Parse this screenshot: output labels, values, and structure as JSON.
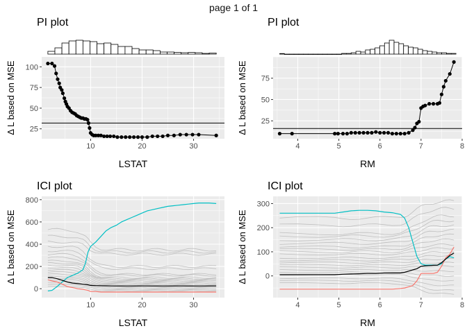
{
  "page_title": "page 1 of 1",
  "colors": {
    "panel_bg": "#ebebeb",
    "grid": "#ffffff",
    "ice_line": "#bebebe",
    "mean_line": "#000000",
    "q_low": "#f8766d",
    "q_high": "#00bfc4",
    "hist_fill": "#ffffff",
    "hist_stroke": "#000000"
  },
  "chart_data": [
    {
      "id": "pi-lstat",
      "type": "line",
      "title": "PI plot",
      "xlabel": "LSTAT",
      "ylabel": "Δ L based on MSE",
      "xlim": [
        0.5,
        36
      ],
      "ylim": [
        13,
        112
      ],
      "xticks": [
        10,
        20,
        30
      ],
      "yticks": [
        25,
        50,
        75,
        100
      ],
      "hline": 32,
      "grid": true,
      "histogram": [
        0.2,
        0.45,
        0.8,
        0.95,
        1.0,
        0.95,
        0.9,
        0.75,
        0.8,
        0.7,
        0.55,
        0.55,
        0.4,
        0.3,
        0.3,
        0.25,
        0.15,
        0.15,
        0.12,
        0.1,
        0.12,
        0.1,
        0.05,
        0.08
      ],
      "points": {
        "x": [
          1.7,
          2.5,
          3.0,
          3.3,
          3.6,
          3.9,
          4.1,
          4.4,
          4.6,
          4.9,
          5.1,
          5.3,
          5.5,
          5.8,
          6.1,
          6.4,
          6.7,
          7.0,
          7.3,
          7.6,
          7.9,
          8.2,
          8.5,
          8.8,
          9.1,
          9.4,
          9.6,
          9.8,
          10.0,
          10.3,
          10.6,
          11.0,
          11.5,
          12.0,
          12.6,
          13.2,
          13.8,
          14.5,
          15.2,
          16.0,
          16.8,
          17.6,
          18.4,
          19.2,
          20.0,
          21.0,
          22.0,
          23.0,
          24.0,
          25.0,
          26.2,
          27.4,
          28.6,
          29.8,
          31.0,
          34.4
        ],
        "y": [
          104,
          104,
          101,
          92,
          85,
          80,
          75,
          72,
          68,
          62,
          58,
          55,
          52,
          50,
          47,
          45,
          44,
          43,
          41,
          40,
          39,
          38,
          38,
          37,
          37,
          36,
          32,
          26,
          20,
          18,
          17,
          17,
          17,
          17,
          16,
          16,
          16,
          16,
          15,
          15,
          15,
          15,
          15,
          15,
          15,
          15,
          16,
          16,
          16,
          17,
          17,
          18,
          18,
          18,
          18,
          17
        ]
      }
    },
    {
      "id": "pi-rm",
      "type": "line",
      "title": "PI plot",
      "xlabel": "RM",
      "ylabel": "Δ L based on MSE",
      "xlim": [
        3.4,
        8.0
      ],
      "ylim": [
        4,
        100
      ],
      "xticks": [
        4,
        5,
        6,
        7,
        8
      ],
      "yticks": [
        25,
        50,
        75
      ],
      "hline": 16,
      "grid": true,
      "histogram": [
        0.04,
        0.0,
        0.0,
        0.0,
        0.0,
        0.0,
        0.0,
        0.0,
        0.0,
        0.0,
        0.0,
        0.0,
        0.0,
        0.05,
        0.05,
        0.1,
        0.2,
        0.15,
        0.3,
        0.35,
        0.45,
        0.6,
        0.8,
        1.0,
        0.85,
        0.75,
        0.6,
        0.5,
        0.45,
        0.35,
        0.25,
        0.2,
        0.15,
        0.1,
        0.1,
        0.05,
        0.05
      ],
      "points": {
        "x": [
          3.56,
          3.86,
          4.9,
          4.98,
          5.1,
          5.2,
          5.3,
          5.4,
          5.5,
          5.6,
          5.7,
          5.8,
          5.9,
          6.0,
          6.1,
          6.2,
          6.3,
          6.4,
          6.5,
          6.6,
          6.7,
          6.8,
          6.85,
          6.9,
          6.95,
          7.0,
          7.05,
          7.1,
          7.2,
          7.3,
          7.4,
          7.45,
          7.5,
          7.55,
          7.6,
          7.7,
          7.8
        ],
        "y": [
          10,
          10,
          10,
          10,
          10,
          10,
          11,
          11,
          11,
          11,
          11,
          11,
          12,
          11,
          11,
          11,
          10,
          10,
          10,
          10,
          11,
          14,
          17,
          22,
          24,
          40,
          42,
          43,
          45,
          45,
          45,
          46,
          56,
          65,
          72,
          80,
          94
        ]
      }
    },
    {
      "id": "ici-lstat",
      "type": "line",
      "title": "ICI plot",
      "xlabel": "LSTAT",
      "ylabel": "Δ L based on MSE",
      "xlim": [
        0.5,
        36
      ],
      "ylim": [
        -80,
        830
      ],
      "xticks": [
        10,
        20,
        30
      ],
      "yticks": [
        0,
        200,
        400,
        600,
        800
      ],
      "grid": true,
      "x": [
        1.7,
        2.5,
        3.5,
        4.5,
        5.5,
        6.5,
        7.5,
        8.5,
        9.0,
        9.5,
        10.0,
        11.0,
        12.0,
        13.0,
        14.0,
        15.0,
        16.0,
        17.0,
        18.0,
        19.0,
        20.0,
        21.0,
        22.0,
        23.0,
        24.0,
        25.0,
        26.0,
        27.0,
        28.0,
        29.0,
        30.0,
        31.0,
        32.0,
        33.0,
        34.4
      ],
      "series": [
        {
          "role": "high",
          "values": [
            -20,
            -15,
            20,
            60,
            100,
            120,
            140,
            170,
            230,
            330,
            380,
            420,
            470,
            520,
            550,
            570,
            600,
            620,
            640,
            660,
            680,
            700,
            710,
            720,
            730,
            740,
            745,
            750,
            755,
            760,
            765,
            770,
            770,
            770,
            765
          ]
        },
        {
          "role": "low",
          "values": [
            80,
            70,
            60,
            40,
            20,
            10,
            0,
            -5,
            -10,
            -15,
            -25,
            -25,
            -30,
            -30,
            -30,
            -30,
            -30,
            -30,
            -30,
            -30,
            -30,
            -30,
            -30,
            -30,
            -30,
            -30,
            -30,
            -30,
            -30,
            -30,
            -30,
            -30,
            -30,
            -30,
            -30
          ]
        },
        {
          "role": "mean",
          "values": [
            100,
            100,
            90,
            75,
            60,
            50,
            45,
            40,
            38,
            35,
            30,
            28,
            27,
            26,
            25,
            25,
            25,
            25,
            25,
            25,
            25,
            25,
            25,
            25,
            25,
            25,
            25,
            25,
            25,
            25,
            25,
            25,
            25,
            25,
            25
          ]
        }
      ],
      "ice_lines": [
        {
          "start": 530,
          "end": 350
        },
        {
          "start": 470,
          "end": 330
        },
        {
          "start": 420,
          "end": 310
        },
        {
          "start": 380,
          "end": 200
        },
        {
          "start": 340,
          "end": 180
        },
        {
          "start": 310,
          "end": 130
        },
        {
          "start": 280,
          "end": 120
        },
        {
          "start": 250,
          "end": 100
        },
        {
          "start": 230,
          "end": 90
        },
        {
          "start": 210,
          "end": 80
        },
        {
          "start": 190,
          "end": 70
        },
        {
          "start": 170,
          "end": 60
        },
        {
          "start": 150,
          "end": 50
        },
        {
          "start": 130,
          "end": 40
        },
        {
          "start": 110,
          "end": 30
        },
        {
          "start": 95,
          "end": 20
        },
        {
          "start": 80,
          "end": 10
        },
        {
          "start": 60,
          "end": 0
        },
        {
          "start": 40,
          "end": -10
        },
        {
          "start": 20,
          "end": -20
        }
      ]
    },
    {
      "id": "ici-rm",
      "type": "line",
      "title": "ICI plot",
      "xlabel": "RM",
      "ylabel": "Δ L based on MSE",
      "xlim": [
        3.4,
        8.0
      ],
      "ylim": [
        -90,
        330
      ],
      "xticks": [
        4,
        5,
        6,
        7,
        8
      ],
      "yticks": [
        0,
        100,
        200,
        300
      ],
      "grid": true,
      "x": [
        3.56,
        4.0,
        4.5,
        4.9,
        5.1,
        5.3,
        5.5,
        5.7,
        5.9,
        6.1,
        6.3,
        6.5,
        6.6,
        6.7,
        6.8,
        6.9,
        7.0,
        7.1,
        7.2,
        7.3,
        7.4,
        7.5,
        7.6,
        7.7,
        7.8
      ],
      "series": [
        {
          "role": "high",
          "values": [
            260,
            260,
            260,
            260,
            265,
            270,
            272,
            272,
            270,
            265,
            262,
            255,
            240,
            200,
            140,
            80,
            50,
            45,
            45,
            45,
            45,
            50,
            70,
            80,
            75
          ]
        },
        {
          "role": "low",
          "values": [
            -55,
            -55,
            -55,
            -55,
            -55,
            -55,
            -55,
            -55,
            -55,
            -55,
            -55,
            -52,
            -50,
            -45,
            -40,
            -20,
            10,
            10,
            10,
            10,
            15,
            40,
            75,
            90,
            120
          ]
        },
        {
          "role": "mean",
          "values": [
            5,
            5,
            5,
            5,
            7,
            8,
            9,
            10,
            10,
            12,
            12,
            12,
            15,
            20,
            25,
            30,
            40,
            42,
            43,
            44,
            45,
            55,
            70,
            85,
            95
          ]
        }
      ],
      "ice_lines": [
        {
          "start": 240,
          "end": 310
        },
        {
          "start": 210,
          "end": 280
        },
        {
          "start": 175,
          "end": 250
        },
        {
          "start": 165,
          "end": 230
        },
        {
          "start": 150,
          "end": 210
        },
        {
          "start": 135,
          "end": 190
        },
        {
          "start": 120,
          "end": 170
        },
        {
          "start": 110,
          "end": 150
        },
        {
          "start": 100,
          "end": 130
        },
        {
          "start": 90,
          "end": 115
        },
        {
          "start": 75,
          "end": 100
        },
        {
          "start": 65,
          "end": 85
        },
        {
          "start": 55,
          "end": 70
        },
        {
          "start": 45,
          "end": 55
        },
        {
          "start": 35,
          "end": 40
        },
        {
          "start": 25,
          "end": 20
        },
        {
          "start": 15,
          "end": 0
        },
        {
          "start": 5,
          "end": -20
        },
        {
          "start": -10,
          "end": -40
        },
        {
          "start": -20,
          "end": -60
        },
        {
          "start": -30,
          "end": -75
        }
      ]
    }
  ]
}
